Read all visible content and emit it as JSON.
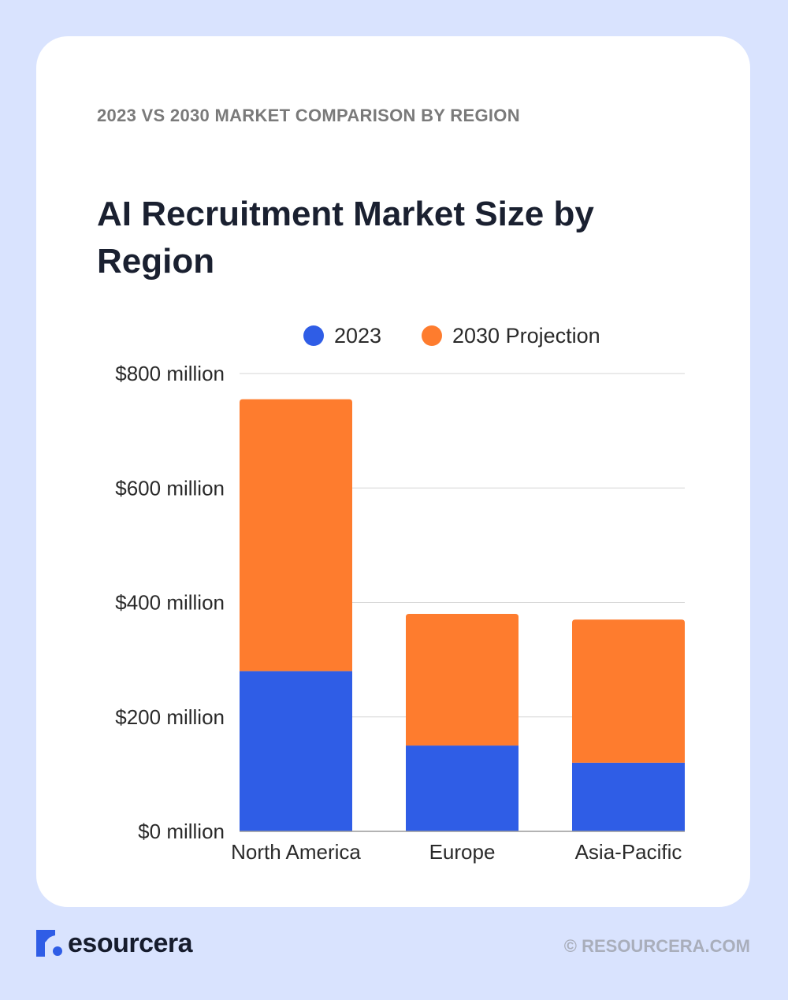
{
  "header": {
    "eyebrow": "2023 VS 2030 MARKET COMPARISON BY REGION",
    "title": "AI Recruitment Market Size by Region"
  },
  "chart_data": {
    "type": "bar",
    "stacked": true,
    "title": "AI Recruitment Market Size by Region",
    "categories": [
      "North America",
      "Europe",
      "Asia-Pacific"
    ],
    "series": [
      {
        "name": "2023",
        "color": "#2f5de6",
        "values": [
          280,
          150,
          120
        ]
      },
      {
        "name": "2030 Projection",
        "color": "#fe7c2e",
        "values": [
          475,
          230,
          250
        ]
      }
    ],
    "y_ticks": [
      0,
      200,
      400,
      600,
      800
    ],
    "y_tick_labels": [
      "$0 million",
      "$200 million",
      "$400 million",
      "$600 million",
      "$800 million"
    ],
    "ylim": [
      0,
      800
    ],
    "grid": true,
    "legend_position": "top"
  },
  "footer": {
    "brand": "esourcera",
    "copyright": "© RESOURCERA.COM"
  },
  "colors": {
    "background": "#d9e3fe",
    "card": "#ffffff",
    "grid": "#d6d6d6",
    "brand_blue": "#2f5de6"
  },
  "icons": {
    "logo": "resourcera-r-logo-icon"
  }
}
